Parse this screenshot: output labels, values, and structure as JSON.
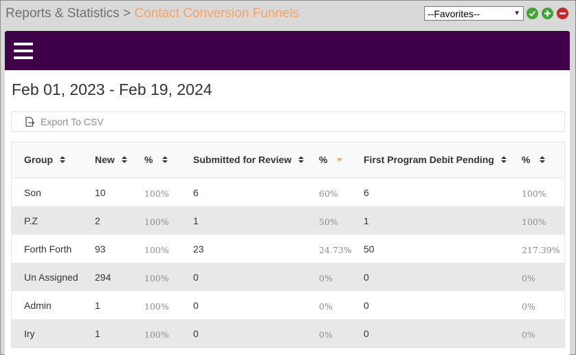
{
  "header": {
    "section": "Reports & Statistics",
    "separator": " > ",
    "current": "Contact Conversion Funnels",
    "favorites_value": "--Favorites--"
  },
  "report": {
    "date_range": "Feb 01, 2023 - Feb 19, 2024",
    "export_label": "Export To CSV"
  },
  "table": {
    "headers": [
      "Group",
      "New",
      "%",
      "Submitted for Review",
      "%",
      "First Program Debit Pending",
      "%"
    ],
    "rows": [
      [
        "Son",
        "10",
        "100%",
        "6",
        "60%",
        "6",
        "100%"
      ],
      [
        "P.Z",
        "2",
        "100%",
        "1",
        "50%",
        "1",
        "100%"
      ],
      [
        "Forth Forth",
        "93",
        "100%",
        "23",
        "24.73%",
        "50",
        "217.39%"
      ],
      [
        "Un Assigned",
        "294",
        "100%",
        "0",
        "0%",
        "0",
        "0%"
      ],
      [
        "Admin",
        "1",
        "100%",
        "0",
        "0%",
        "0",
        "0%"
      ],
      [
        "Iry",
        "1",
        "100%",
        "0",
        "0%",
        "0",
        "0%"
      ]
    ]
  },
  "colors": {
    "accent": "#f7a35c",
    "navbar": "#3d0049",
    "ok": "#3fa535",
    "danger": "#c62828"
  }
}
